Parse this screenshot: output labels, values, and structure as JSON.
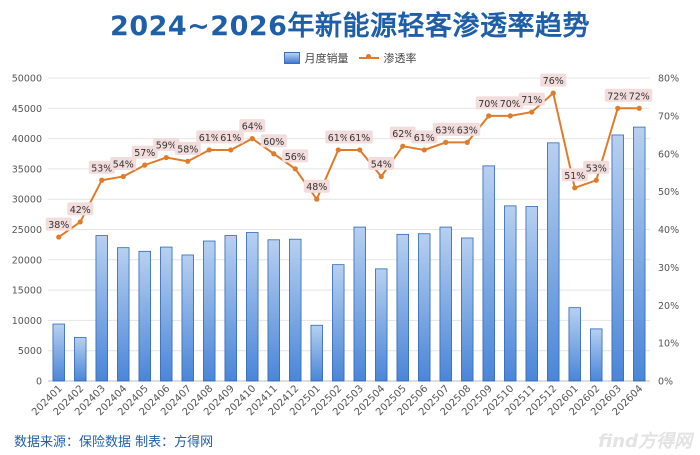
{
  "page_title": "2024~2026年新能源轻客渗透率趋势",
  "source_text": "数据来源：保险数据 制表：方得网",
  "logo_text": "find方得网",
  "colors": {
    "bar": "#4a86d8",
    "line": "#e07b2a",
    "label_bg": "#f3dcdc",
    "title": "#1f5fa8"
  },
  "chart_data": {
    "type": "bar+line",
    "categories": [
      "202401",
      "202402",
      "202403",
      "202404",
      "202405",
      "202406",
      "202407",
      "202408",
      "202409",
      "202410",
      "202411",
      "202412",
      "202501",
      "202502",
      "202503",
      "202504",
      "202505",
      "202506",
      "202507",
      "202508",
      "202509",
      "202510",
      "202511",
      "202512",
      "202601",
      "202602",
      "202603",
      "202604"
    ],
    "series": [
      {
        "name": "月度销量",
        "type": "bar",
        "axis": "left",
        "values": [
          9400,
          7200,
          24000,
          22000,
          21400,
          22100,
          20800,
          23100,
          24000,
          24500,
          23300,
          23400,
          9200,
          19200,
          25400,
          18500,
          24200,
          24300,
          25400,
          23600,
          35500,
          28900,
          28800,
          39300,
          12100,
          8600,
          40600,
          41900
        ]
      },
      {
        "name": "渗透率",
        "type": "line",
        "axis": "right",
        "values": [
          38,
          42,
          53,
          54,
          57,
          59,
          58,
          61,
          61,
          64,
          60,
          56,
          48,
          61,
          61,
          54,
          62,
          61,
          63,
          63,
          70,
          70,
          71,
          76,
          51,
          53,
          72,
          72
        ],
        "labels": [
          "38%",
          "42%",
          "53%",
          "54%",
          "57%",
          "59%",
          "58%",
          "61%",
          "61%",
          "64%",
          "60%",
          "56%",
          "48%",
          "61%",
          "61%",
          "54%",
          "62%",
          "61%",
          "63%",
          "63%",
          "70%",
          "70%",
          "71%",
          "76%",
          "51%",
          "53%",
          "72%",
          "72%"
        ]
      }
    ],
    "y_left": {
      "min": 0,
      "max": 50000,
      "ticks": [
        "0",
        "5000",
        "10000",
        "15000",
        "20000",
        "25000",
        "30000",
        "35000",
        "40000",
        "45000",
        "50000"
      ]
    },
    "y_right": {
      "min": 0,
      "max": 80,
      "ticks": [
        "0%",
        "10%",
        "20%",
        "30%",
        "40%",
        "50%",
        "60%",
        "70%",
        "80%"
      ]
    },
    "grid": true,
    "legend_position": "top-center"
  }
}
